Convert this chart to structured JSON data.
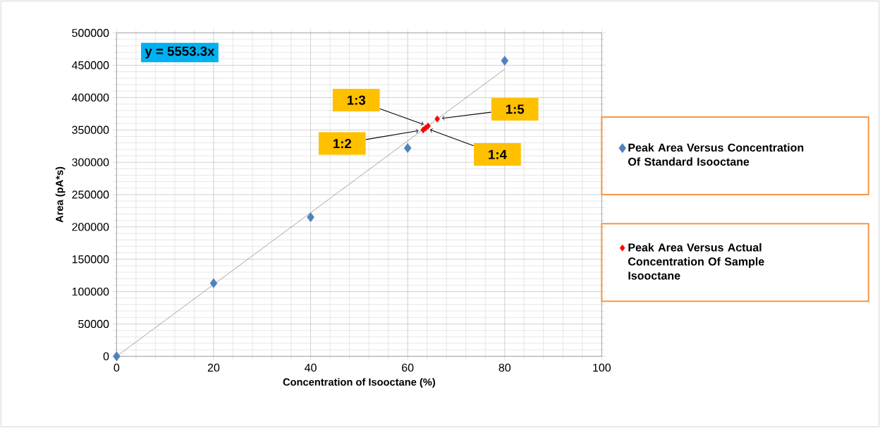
{
  "chart_data": {
    "type": "scatter",
    "xlabel": "Concentration of Isooctane (%)",
    "ylabel": "Area (pA*s)",
    "xlim": [
      0,
      100
    ],
    "ylim": [
      0,
      500000
    ],
    "xticks": [
      0,
      20,
      40,
      60,
      80,
      100
    ],
    "yticks": [
      0,
      50000,
      100000,
      150000,
      200000,
      250000,
      300000,
      350000,
      400000,
      450000,
      500000
    ],
    "grid": true,
    "marker": "diamond",
    "legend": "right",
    "series": [
      {
        "name": "Peak Area Versus Concentration Of Standard Isooctane",
        "color": "#4f81bd",
        "x": [
          0,
          20,
          40,
          60,
          80
        ],
        "values": [
          0,
          113000,
          215000,
          322000,
          457000
        ]
      },
      {
        "name": "Peak Area Versus Actual Concentration Of Sample Isooctane",
        "color": "#ff0000",
        "x": [
          63.2,
          63.7,
          64.2,
          66.1
        ],
        "values": [
          350000,
          353000,
          356000,
          367000
        ]
      },
      {
        "type": "line",
        "marker": "none",
        "color": "#595959",
        "x": [
          0,
          80
        ],
        "values": [
          0,
          444000
        ]
      }
    ],
    "annotations": [
      "y = 5553.3x",
      {
        "text": "1:2",
        "x": 63.2,
        "y": 350000
      },
      {
        "text": "1:3",
        "x": 64.2,
        "y": 356000
      },
      {
        "text": "1:4",
        "x": 63.7,
        "y": 353000
      },
      {
        "text": "1:5",
        "x": 66.1,
        "y": 367000
      }
    ]
  }
}
